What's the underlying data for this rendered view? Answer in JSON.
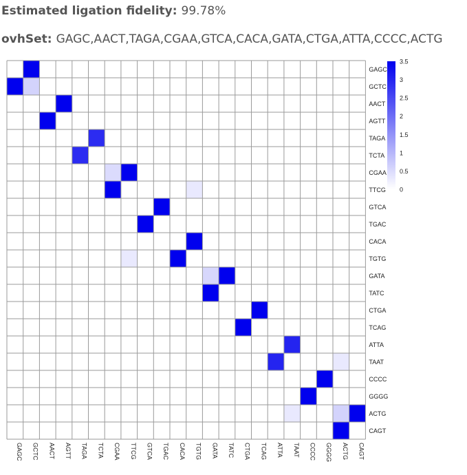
{
  "header": {
    "fidelity_label": "Estimated ligation fidelity:",
    "fidelity_value": "99.78%",
    "ovhset_label": "ovhSet:",
    "ovhset_value": "GAGC,AACT,TAGA,CGAA,GTCA,CACA,GATA,CTGA,ATTA,CCCC,ACTG"
  },
  "chart_data": {
    "type": "heatmap",
    "title": "",
    "rows": [
      "GAGC",
      "GCTC",
      "AACT",
      "AGTT",
      "TAGA",
      "TCTA",
      "CGAA",
      "TTCG",
      "GTCA",
      "TGAC",
      "CACA",
      "TGTG",
      "GATA",
      "TATC",
      "CTGA",
      "TCAG",
      "ATTA",
      "TAAT",
      "CCCC",
      "GGGG",
      "ACTG",
      "CAGT"
    ],
    "columns": [
      "GAGC",
      "GCTC",
      "AACT",
      "AGTT",
      "TAGA",
      "TCTA",
      "CGAA",
      "TTCG",
      "GTCA",
      "TGAC",
      "CACA",
      "TGTG",
      "GATA",
      "TATC",
      "CTGA",
      "TCAG",
      "ATTA",
      "TAAT",
      "CCCC",
      "GGGG",
      "ACTG",
      "CAGT"
    ],
    "cells": [
      {
        "row": 0,
        "col": 1,
        "value": 3.5
      },
      {
        "row": 1,
        "col": 0,
        "value": 3.5
      },
      {
        "row": 1,
        "col": 1,
        "value": 0.6
      },
      {
        "row": 2,
        "col": 3,
        "value": 3.5
      },
      {
        "row": 3,
        "col": 2,
        "value": 3.5
      },
      {
        "row": 4,
        "col": 5,
        "value": 2.9
      },
      {
        "row": 5,
        "col": 4,
        "value": 2.9
      },
      {
        "row": 6,
        "col": 6,
        "value": 0.5
      },
      {
        "row": 6,
        "col": 7,
        "value": 3.5
      },
      {
        "row": 7,
        "col": 6,
        "value": 3.5
      },
      {
        "row": 7,
        "col": 11,
        "value": 0.3
      },
      {
        "row": 8,
        "col": 9,
        "value": 3.5
      },
      {
        "row": 9,
        "col": 8,
        "value": 3.5
      },
      {
        "row": 10,
        "col": 11,
        "value": 3.5
      },
      {
        "row": 11,
        "col": 7,
        "value": 0.3
      },
      {
        "row": 11,
        "col": 10,
        "value": 3.5
      },
      {
        "row": 12,
        "col": 12,
        "value": 0.55
      },
      {
        "row": 12,
        "col": 13,
        "value": 3.5
      },
      {
        "row": 13,
        "col": 12,
        "value": 3.5
      },
      {
        "row": 14,
        "col": 15,
        "value": 3.5
      },
      {
        "row": 15,
        "col": 14,
        "value": 3.5
      },
      {
        "row": 16,
        "col": 17,
        "value": 3.0
      },
      {
        "row": 17,
        "col": 16,
        "value": 3.0
      },
      {
        "row": 17,
        "col": 20,
        "value": 0.3
      },
      {
        "row": 18,
        "col": 19,
        "value": 3.5
      },
      {
        "row": 19,
        "col": 18,
        "value": 3.5
      },
      {
        "row": 20,
        "col": 17,
        "value": 0.3
      },
      {
        "row": 20,
        "col": 20,
        "value": 0.6
      },
      {
        "row": 20,
        "col": 21,
        "value": 3.5
      },
      {
        "row": 21,
        "col": 20,
        "value": 3.5
      }
    ],
    "colorscale": {
      "min": 0,
      "max": 3.5,
      "low_color": "#ffffff",
      "high_color": "#0000ee"
    },
    "colorbar_ticks": [
      "3.5",
      "3",
      "2.5",
      "2",
      "1.5",
      "1",
      "0.5",
      "0"
    ],
    "colorbar_tick_values": [
      3.5,
      3,
      2.5,
      2,
      1.5,
      1,
      0.5,
      0
    ],
    "grid": true,
    "row_labels_position": "right",
    "column_labels_position": "bottom-rotated"
  }
}
